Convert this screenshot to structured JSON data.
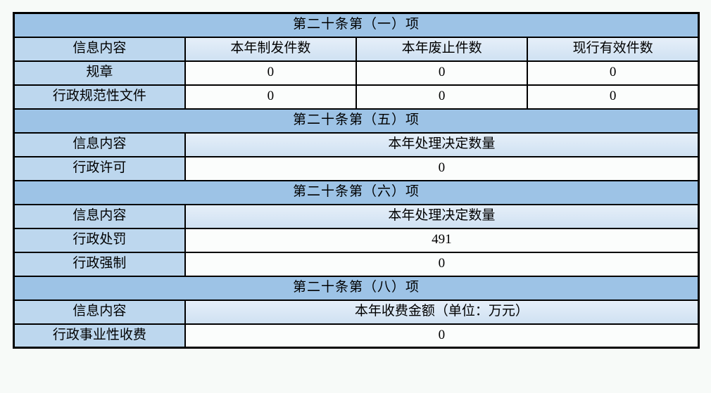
{
  "colors": {
    "page_bg": "#f7faf8",
    "section_header_bg": "#9dc3e6",
    "label_and_info_header_bg": "#bdd7ee",
    "column_header_bg_top": "#e6eff9",
    "column_header_bg_bottom": "#cfe1f2",
    "data_cell_bg": "#fbfdfc",
    "border": "#000000",
    "text": "#000000"
  },
  "sections": [
    {
      "title": "第二十条第（一）项",
      "columns": [
        "信息内容",
        "本年制发件数",
        "本年废止件数",
        "现行有效件数"
      ],
      "rows": [
        {
          "label": "规章",
          "values": [
            "0",
            "0",
            "0"
          ]
        },
        {
          "label": "行政规范性文件",
          "values": [
            "0",
            "0",
            "0"
          ]
        }
      ]
    },
    {
      "title": "第二十条第（五）项",
      "columns": [
        "信息内容",
        "本年处理决定数量"
      ],
      "rows": [
        {
          "label": "行政许可",
          "values": [
            "0"
          ]
        }
      ]
    },
    {
      "title": "第二十条第（六）项",
      "columns": [
        "信息内容",
        "本年处理决定数量"
      ],
      "rows": [
        {
          "label": "行政处罚",
          "values": [
            "491"
          ]
        },
        {
          "label": "行政强制",
          "values": [
            "0"
          ]
        }
      ]
    },
    {
      "title": "第二十条第（八）项",
      "columns": [
        "信息内容",
        "本年收费金额（单位：万元）"
      ],
      "rows": [
        {
          "label": "行政事业性收费",
          "values": [
            "0"
          ]
        }
      ]
    }
  ]
}
